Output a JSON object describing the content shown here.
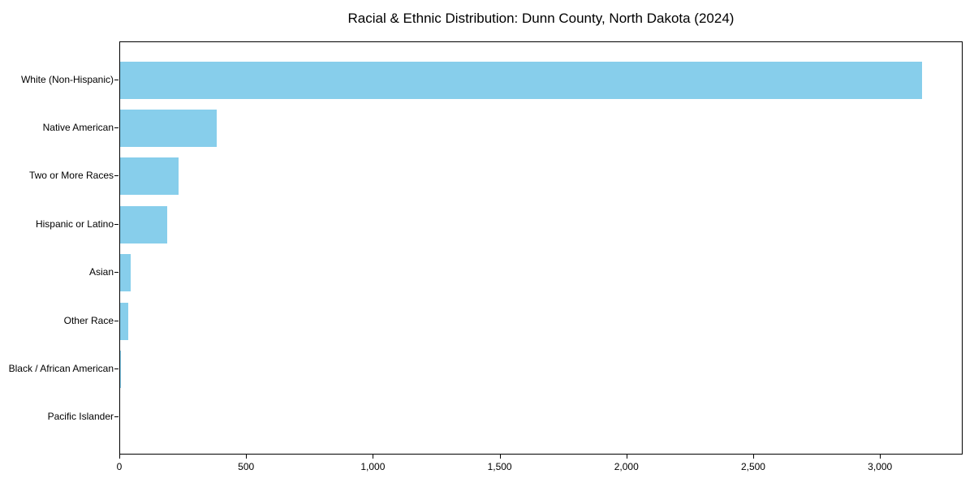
{
  "title": "Racial & Ethnic Distribution: Dunn County, North Dakota (2024)",
  "colors": {
    "bar": "#87CEEB",
    "axis": "#000000",
    "background": "#FFFFFF",
    "text": "#000000"
  },
  "chart_data": {
    "type": "bar",
    "orientation": "horizontal",
    "title": "Racial & Ethnic Distribution: Dunn County, North Dakota (2024)",
    "xlabel": "",
    "ylabel": "",
    "categories": [
      "White (Non-Hispanic)",
      "Native American",
      "Two or More Races",
      "Hispanic or Latino",
      "Asian",
      "Other Race",
      "Black / African American",
      "Pacific Islander"
    ],
    "values": [
      3168,
      382,
      232,
      187,
      43,
      33,
      4,
      0
    ],
    "xlim": [
      0,
      3326
    ],
    "x_ticks": [
      0,
      500,
      1000,
      1500,
      2000,
      2500,
      3000
    ],
    "x_tick_labels": [
      "0",
      "500",
      "1,000",
      "1,500",
      "2,000",
      "2,500",
      "3,000"
    ],
    "bar_color": "#87CEEB",
    "grid": false,
    "legend": "none",
    "sort": "descending, largest at top"
  }
}
